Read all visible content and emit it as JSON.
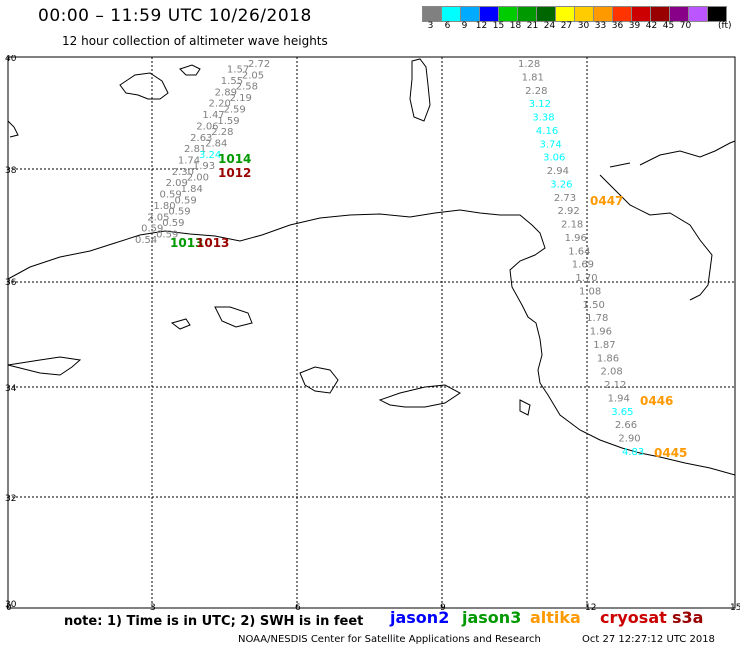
{
  "header": {
    "title": "00:00 – 11:59 UTC 10/26/2018",
    "subtitle": "12 hour collection of altimeter wave heights"
  },
  "scale": {
    "colors": [
      "#808080",
      "#00ffff",
      "#00aaff",
      "#0000ff",
      "#00cc00",
      "#009900",
      "#006600",
      "#ffff00",
      "#ffcc00",
      "#ff9900",
      "#ff3300",
      "#cc0000",
      "#990000",
      "#880088",
      "#bb55ff",
      "#000000"
    ],
    "labels": [
      "3",
      "6",
      "9",
      "12",
      "15",
      "18",
      "21",
      "24",
      "27",
      "30",
      "33",
      "36",
      "39",
      "42",
      "45",
      "70"
    ],
    "unit": "(ft)"
  },
  "axes": {
    "lat_labels": [
      "40",
      "38",
      "36",
      "34",
      "32",
      "30"
    ],
    "lon_labels": [
      "0",
      "3",
      "6",
      "9",
      "12",
      "15"
    ]
  },
  "tracks": {
    "west": [
      {
        "v": "2.72",
        "c": "#808080"
      },
      {
        "v": "1.57",
        "c": "#808080"
      },
      {
        "v": "2.05",
        "c": "#808080"
      },
      {
        "v": "1.55",
        "c": "#808080"
      },
      {
        "v": "2.58",
        "c": "#808080"
      },
      {
        "v": "2.89",
        "c": "#808080"
      },
      {
        "v": "2.19",
        "c": "#808080"
      },
      {
        "v": "2.20",
        "c": "#808080"
      },
      {
        "v": "2.59",
        "c": "#808080"
      },
      {
        "v": "1.47",
        "c": "#808080"
      },
      {
        "v": "1.59",
        "c": "#808080"
      },
      {
        "v": "2.06",
        "c": "#808080"
      },
      {
        "v": "2.28",
        "c": "#808080"
      },
      {
        "v": "2.63",
        "c": "#808080"
      },
      {
        "v": "2.84",
        "c": "#808080"
      },
      {
        "v": "2.81",
        "c": "#808080"
      },
      {
        "v": "3.24",
        "c": "#00ffff"
      },
      {
        "v": "1.74",
        "c": "#808080"
      },
      {
        "v": "1.93",
        "c": "#808080"
      },
      {
        "v": "2.30",
        "c": "#808080"
      },
      {
        "v": "2.00",
        "c": "#808080"
      },
      {
        "v": "2.09",
        "c": "#808080"
      },
      {
        "v": "1.84",
        "c": "#808080"
      },
      {
        "v": "0.59",
        "c": "#808080"
      },
      {
        "v": "0.59",
        "c": "#808080"
      },
      {
        "v": "1.80",
        "c": "#808080"
      },
      {
        "v": "0.59",
        "c": "#808080"
      },
      {
        "v": "2.05",
        "c": "#808080"
      },
      {
        "v": "0.59",
        "c": "#808080"
      },
      {
        "v": "0.59",
        "c": "#808080"
      },
      {
        "v": "0.59",
        "c": "#808080"
      },
      {
        "v": "0.54",
        "c": "#808080"
      }
    ],
    "east": [
      {
        "v": "1.28",
        "c": "#808080"
      },
      {
        "v": "1.81",
        "c": "#808080"
      },
      {
        "v": "2.28",
        "c": "#808080"
      },
      {
        "v": "3.12",
        "c": "#00ffff"
      },
      {
        "v": "3.38",
        "c": "#00ffff"
      },
      {
        "v": "4.16",
        "c": "#00ffff"
      },
      {
        "v": "3.74",
        "c": "#00ffff"
      },
      {
        "v": "3.06",
        "c": "#00ffff"
      },
      {
        "v": "2.94",
        "c": "#808080"
      },
      {
        "v": "3.26",
        "c": "#00ffff"
      },
      {
        "v": "2.73",
        "c": "#808080"
      },
      {
        "v": "2.92",
        "c": "#808080"
      },
      {
        "v": "2.18",
        "c": "#808080"
      },
      {
        "v": "1.96",
        "c": "#808080"
      },
      {
        "v": "1.64",
        "c": "#808080"
      },
      {
        "v": "1.69",
        "c": "#808080"
      },
      {
        "v": "1.70",
        "c": "#808080"
      },
      {
        "v": "1.08",
        "c": "#808080"
      },
      {
        "v": "1.50",
        "c": "#808080"
      },
      {
        "v": "1.78",
        "c": "#808080"
      },
      {
        "v": "1.96",
        "c": "#808080"
      },
      {
        "v": "1.87",
        "c": "#808080"
      },
      {
        "v": "1.86",
        "c": "#808080"
      },
      {
        "v": "2.08",
        "c": "#808080"
      },
      {
        "v": "2.12",
        "c": "#808080"
      },
      {
        "v": "1.94",
        "c": "#808080"
      },
      {
        "v": "3.65",
        "c": "#00ffff"
      },
      {
        "v": "2.66",
        "c": "#808080"
      },
      {
        "v": "2.90",
        "c": "#808080"
      },
      {
        "v": "4.83",
        "c": "#00ffff"
      }
    ],
    "time_labels": [
      {
        "t": "1014",
        "c": "#009900"
      },
      {
        "t": "1012",
        "c": "#990000"
      },
      {
        "t": "1013",
        "c": "#009900"
      },
      {
        "t": "1013",
        "c": "#990000"
      },
      {
        "t": "0447",
        "c": "#ff9900"
      },
      {
        "t": "0446",
        "c": "#ff9900"
      },
      {
        "t": "0445",
        "c": "#ff9900"
      }
    ]
  },
  "footer": {
    "note": "note: 1) Time is in UTC; 2) SWH is in feet",
    "legend": [
      {
        "name": "jason2",
        "color": "#0000ff"
      },
      {
        "name": "jason3",
        "color": "#009900"
      },
      {
        "name": "altika",
        "color": "#ff9900"
      },
      {
        "name": "cryosat",
        "color": "#cc0000"
      },
      {
        "name": "s3a",
        "color": "#990000"
      }
    ],
    "credit": "NOAA/NESDIS Center for Satellite Applications and Research",
    "timestamp": "Oct 27 12:27:12 UTC 2018"
  }
}
